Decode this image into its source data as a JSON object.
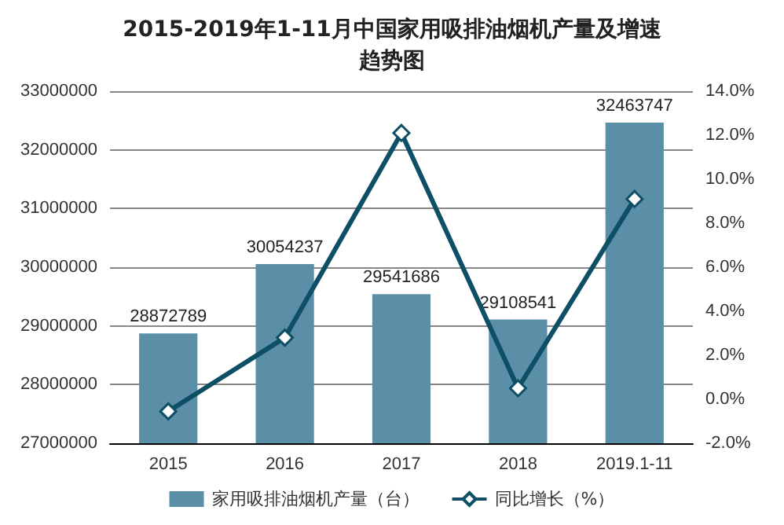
{
  "chart_data": {
    "type": "bar",
    "title": "2015-2019年1-11月中国家用吸排油烟机产量及增速趋势图",
    "categories": [
      "2015",
      "2016",
      "2017",
      "2018",
      "2019.1-11"
    ],
    "series": [
      {
        "name": "家用吸排油烟机产量（台）",
        "color": "#5b8fa8",
        "values": [
          28872789,
          30054237,
          29541686,
          29108541,
          32463747
        ],
        "value_labels": [
          "28872789",
          "30054237",
          "29541686",
          "29108541",
          "32463747"
        ]
      },
      {
        "name": "同比增长（%）",
        "type": "line",
        "axis": "y2",
        "color": "#0e4f66",
        "marker": "diamond",
        "values": [
          -0.55,
          2.8,
          12.1,
          0.5,
          9.1
        ]
      }
    ],
    "ylim": [
      27000000,
      33000000
    ],
    "yticks": [
      27000000,
      28000000,
      29000000,
      30000000,
      31000000,
      32000000,
      33000000
    ],
    "y2lim": [
      -2,
      14
    ],
    "y2ticks": [
      {
        "value": -2,
        "label": "-2.0%"
      },
      {
        "value": 0,
        "label": "0.0%"
      },
      {
        "value": 2,
        "label": "2.0%"
      },
      {
        "value": 4,
        "label": "4.0%"
      },
      {
        "value": 6,
        "label": "6.0%"
      },
      {
        "value": 8,
        "label": "8.0%"
      },
      {
        "value": 10,
        "label": "10.0%"
      },
      {
        "value": 12,
        "label": "12.0%"
      },
      {
        "value": 14,
        "label": "14.0%"
      }
    ],
    "grid": "y",
    "legend": "bottom"
  }
}
